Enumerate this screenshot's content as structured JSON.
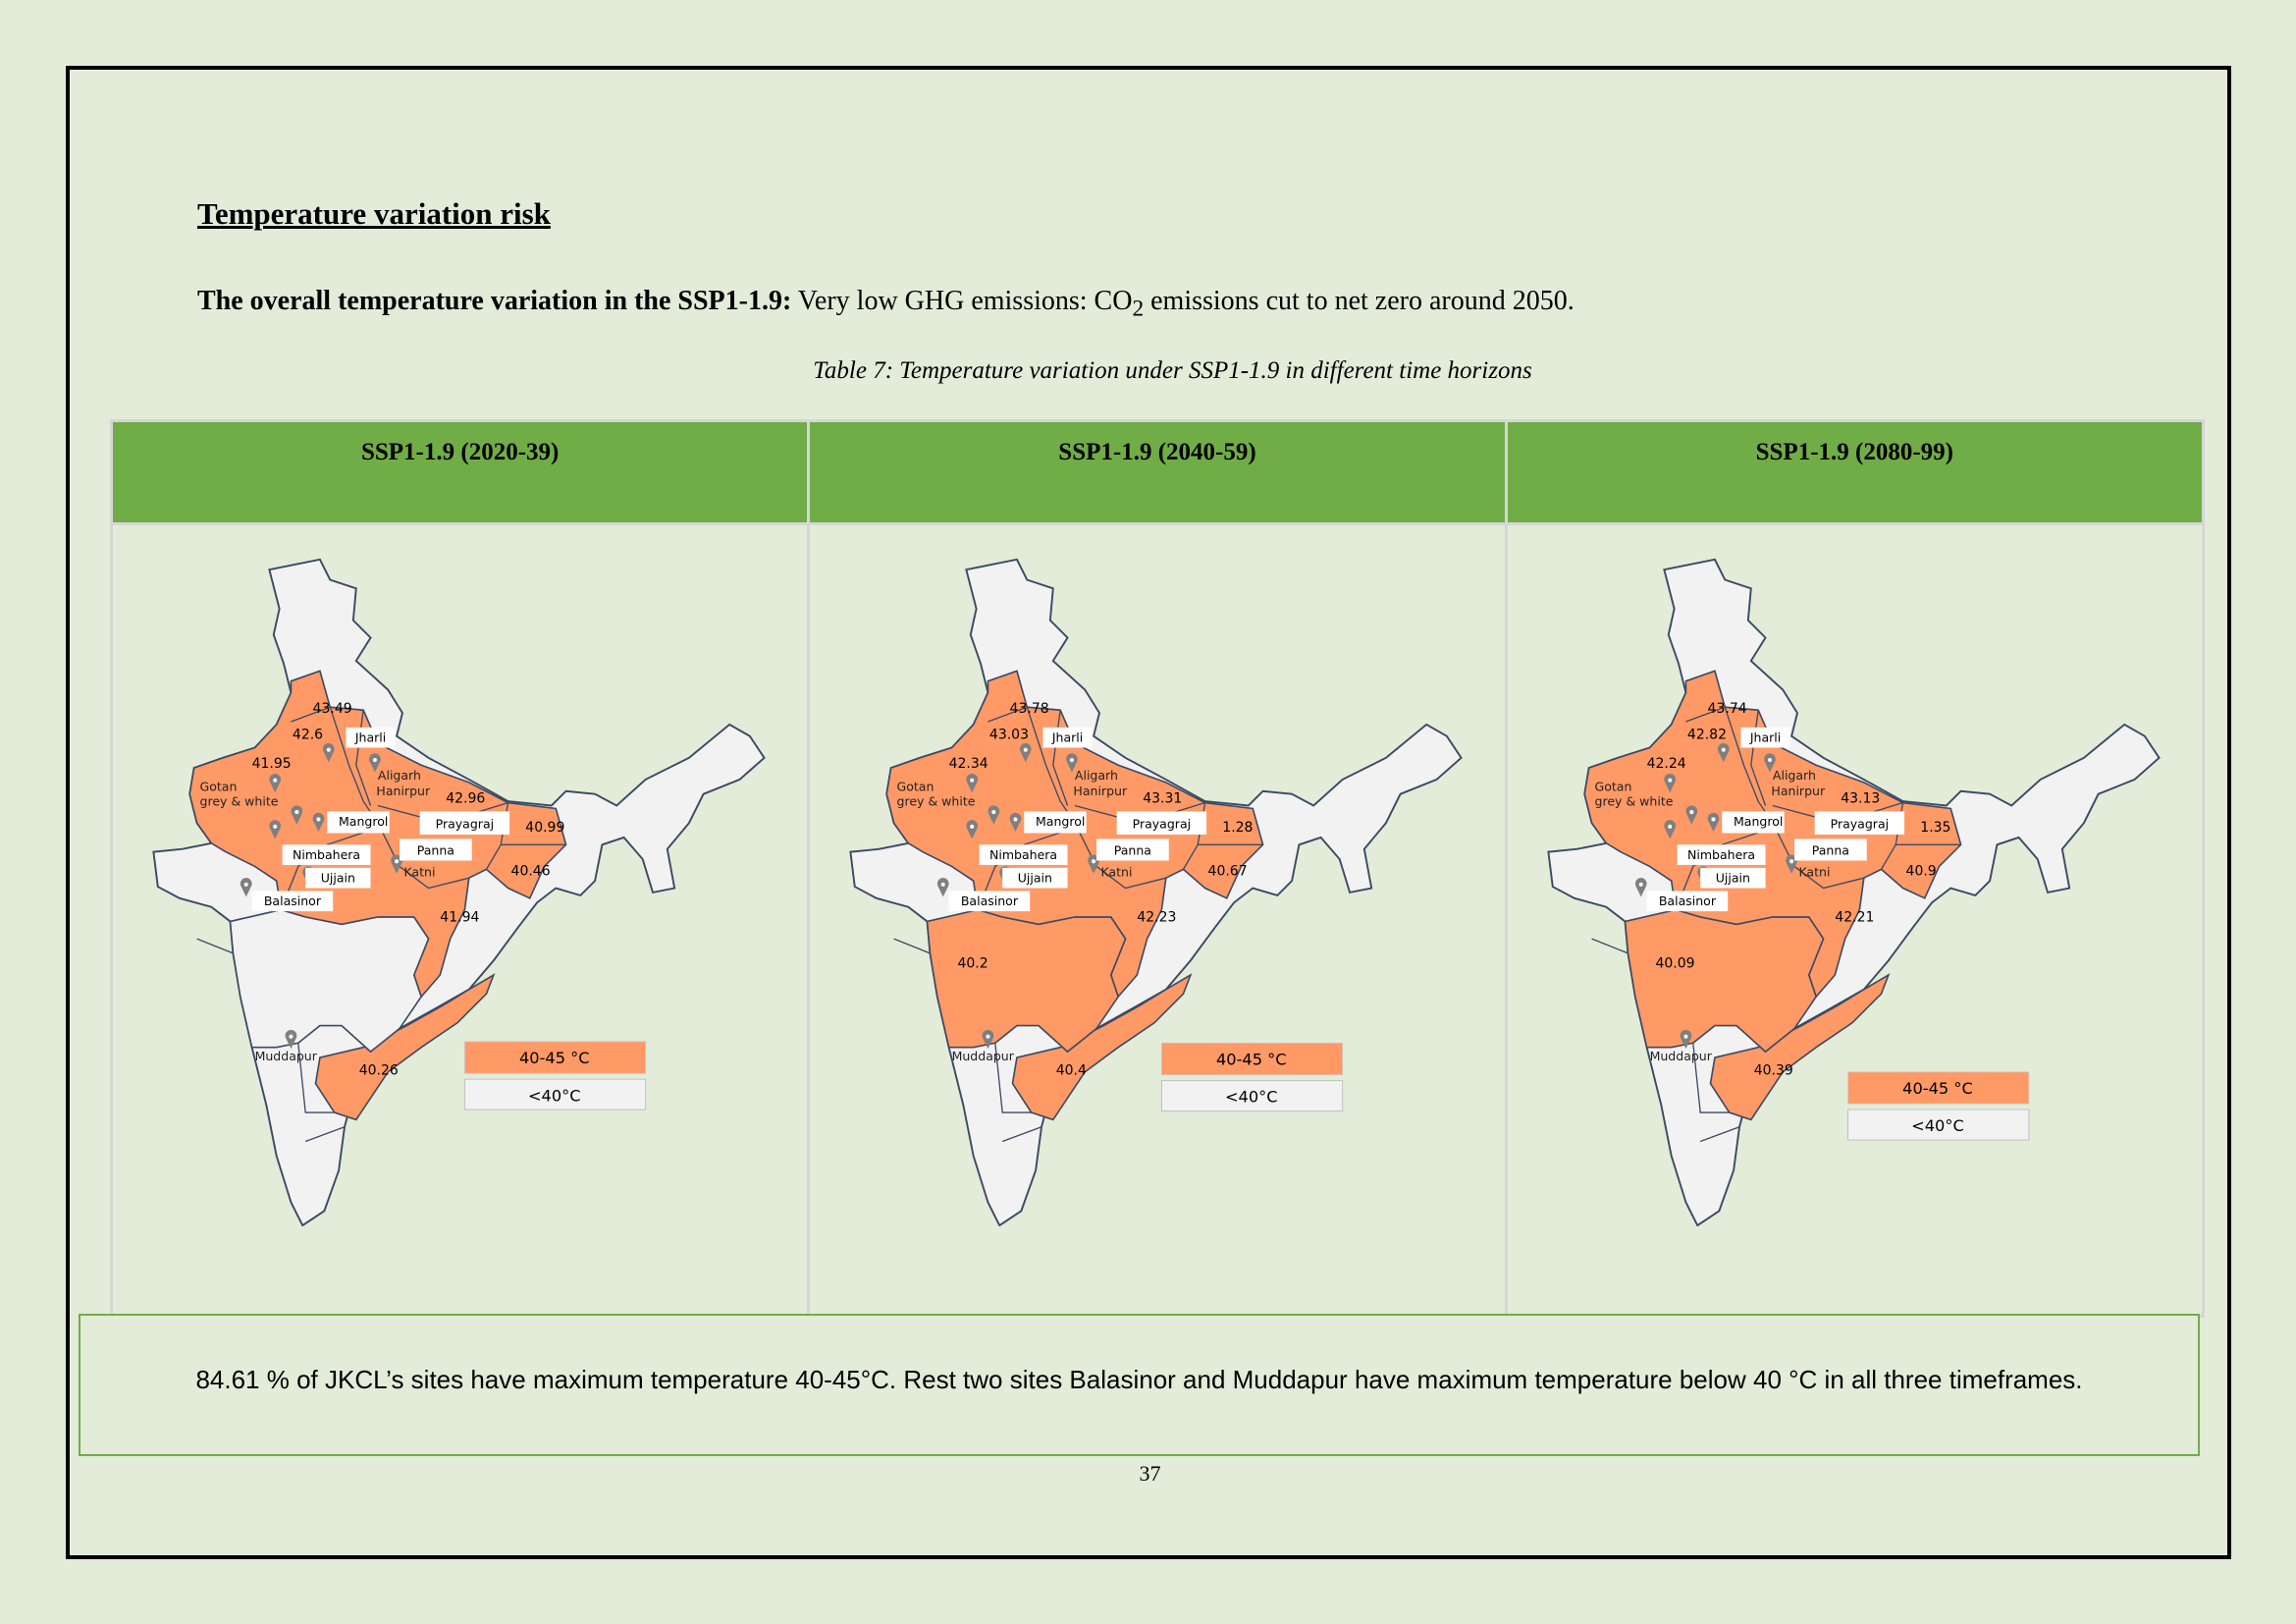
{
  "heading": "Temperature variation risk",
  "intro": {
    "bold": "The overall temperature variation in the SSP1-1.9:",
    "text_before_sub": " Very low GHG emissions: CO",
    "subscript": "2",
    "text_after_sub": " emissions cut to net zero around 2050."
  },
  "caption": "Table 7: Temperature variation under SSP1-1.9 in different time horizons",
  "colors": {
    "in_range": "#ff9966",
    "below": "#f2f2f2",
    "header": "#70ad47",
    "border": "#3b4a63",
    "pin": "#7f7f7f"
  },
  "legend": {
    "in_range": "40-45 °C",
    "below": "<40°C"
  },
  "sites": {
    "jharli": "Jharli",
    "aligarh": "Aligarh",
    "hanirpur": "Hanirpur",
    "gotan1": "Gotan",
    "gotan2": "grey & white",
    "mangrol": "Mangrol",
    "prayagraj": "Prayagraj",
    "panna": "Panna",
    "nimbahera": "Nimbahera",
    "katni": "Katni",
    "ujjain": "Ujjain",
    "balasinor": "Balasinor",
    "muddapur": "Muddapur"
  },
  "maps": [
    {
      "header": "SSP1-1.9 (2020-39)",
      "values": {
        "punjab": "43.49",
        "haryana": "42.6",
        "rajasthan": "41.95",
        "up": "42.96",
        "bihar": "40.99",
        "jharkhand": "40.46",
        "chhattisgarh": "41.94",
        "andhra": "40.26"
      },
      "maharashtra_in_range": false
    },
    {
      "header": "SSP1-1.9 (2040-59)",
      "values": {
        "punjab": "43.78",
        "haryana": "43.03",
        "rajasthan": "42.34",
        "up": "43.31",
        "bihar": "1.28",
        "jharkhand": "40.67",
        "chhattisgarh": "42.23",
        "andhra": "40.4",
        "maharashtra": "40.2"
      },
      "maharashtra_in_range": true
    },
    {
      "header": "SSP1-1.9 (2080-99)",
      "values": {
        "punjab": "43.74",
        "haryana": "42.82",
        "rajasthan": "42.24",
        "up": "43.13",
        "bihar": "1.35",
        "jharkhand": "40.9",
        "chhattisgarh": "42.21",
        "andhra": "40.39",
        "maharashtra": "40.09"
      },
      "maharashtra_in_range": true
    }
  ],
  "summary": "84.61 % of JKCL’s sites have maximum temperature 40-45°C. Rest two sites Balasinor and Muddapur have maximum temperature below 40 °C in all three timeframes.",
  "page_number": "37"
}
